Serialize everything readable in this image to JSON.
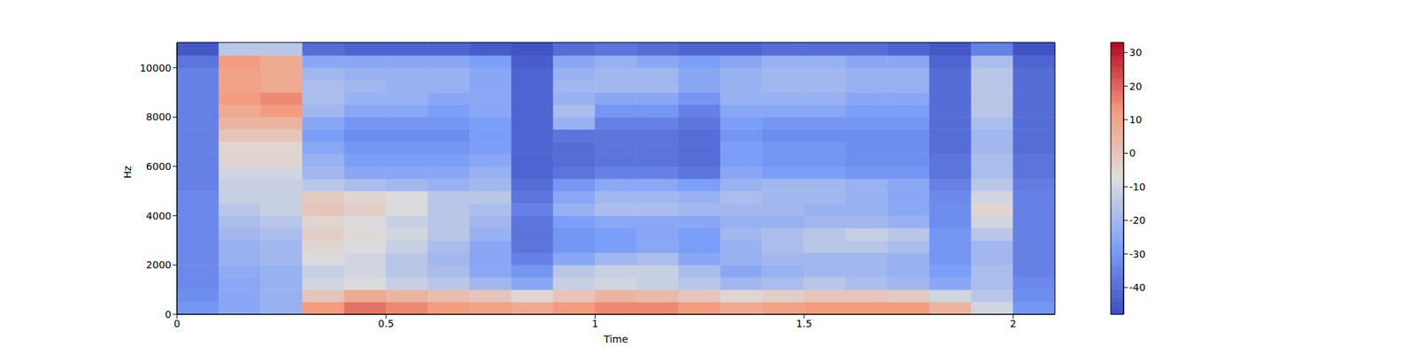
{
  "chart_data": {
    "type": "heatmap",
    "xlabel": "Time",
    "ylabel": "Hz",
    "x": [
      0,
      0.1,
      0.2,
      0.3,
      0.4,
      0.5,
      0.6,
      0.7,
      0.8,
      0.9,
      1.0,
      1.1,
      1.2,
      1.3,
      1.4,
      1.5,
      1.6,
      1.7,
      1.8,
      1.9,
      2.0,
      2.1
    ],
    "y": [
      0,
      500,
      1000,
      1500,
      2000,
      2500,
      3000,
      3500,
      4000,
      4500,
      5000,
      5500,
      6000,
      6500,
      7000,
      7500,
      8000,
      8500,
      9000,
      9500,
      10000,
      10500,
      11025
    ],
    "z": [
      [
        -30,
        -25,
        -22,
        12,
        18,
        15,
        12,
        10,
        8,
        12,
        15,
        15,
        12,
        8,
        10,
        12,
        12,
        12,
        5,
        -10,
        -30
      ],
      [
        -32,
        -25,
        -22,
        0,
        8,
        5,
        2,
        0,
        -5,
        0,
        5,
        3,
        0,
        -5,
        -3,
        0,
        0,
        -2,
        -10,
        -15,
        -32
      ],
      [
        -33,
        -25,
        -22,
        -10,
        -8,
        -12,
        -15,
        -20,
        -25,
        -12,
        -10,
        -12,
        -15,
        -20,
        -18,
        -15,
        -18,
        -20,
        -25,
        -18,
        -33
      ],
      [
        -33,
        -24,
        -22,
        -12,
        -10,
        -15,
        -18,
        -25,
        -30,
        -15,
        -12,
        -12,
        -18,
        -25,
        -22,
        -20,
        -20,
        -22,
        -28,
        -18,
        -35
      ],
      [
        -33,
        -22,
        -20,
        -8,
        -10,
        -15,
        -20,
        -25,
        -35,
        -25,
        -20,
        -18,
        -25,
        -22,
        -20,
        -20,
        -20,
        -22,
        -30,
        -20,
        -35
      ],
      [
        -33,
        -22,
        -20,
        -5,
        -8,
        -12,
        -18,
        -25,
        -38,
        -30,
        -28,
        -25,
        -28,
        -22,
        -18,
        -15,
        -15,
        -18,
        -30,
        -20,
        -35
      ],
      [
        -33,
        -20,
        -18,
        -3,
        -6,
        -10,
        -15,
        -22,
        -38,
        -30,
        -28,
        -25,
        -28,
        -20,
        -18,
        -15,
        -12,
        -15,
        -30,
        -15,
        -35
      ],
      [
        -33,
        -18,
        -15,
        -5,
        -8,
        -12,
        -15,
        -20,
        -38,
        -28,
        -25,
        -25,
        -25,
        -22,
        -22,
        -20,
        -20,
        -22,
        -32,
        -10,
        -35
      ],
      [
        -33,
        -15,
        -12,
        0,
        -3,
        -8,
        -15,
        -18,
        -35,
        -22,
        -18,
        -18,
        -20,
        -20,
        -20,
        -22,
        -22,
        -25,
        -32,
        -5,
        -35
      ],
      [
        -33,
        -12,
        -12,
        -2,
        -5,
        -8,
        -15,
        -15,
        -38,
        -25,
        -20,
        -20,
        -22,
        -18,
        -20,
        -20,
        -22,
        -25,
        -33,
        -10,
        -35
      ],
      [
        -35,
        -12,
        -12,
        -15,
        -18,
        -20,
        -22,
        -20,
        -40,
        -30,
        -25,
        -25,
        -28,
        -22,
        -20,
        -20,
        -22,
        -25,
        -35,
        -15,
        -36
      ],
      [
        -35,
        -10,
        -10,
        -20,
        -25,
        -25,
        -25,
        -22,
        -42,
        -38,
        -35,
        -35,
        -38,
        -25,
        -28,
        -28,
        -30,
        -30,
        -38,
        -18,
        -38
      ],
      [
        -35,
        -5,
        -5,
        -22,
        -28,
        -28,
        -28,
        -25,
        -42,
        -40,
        -38,
        -38,
        -40,
        -28,
        -30,
        -30,
        -32,
        -32,
        -38,
        -18,
        -38
      ],
      [
        -35,
        -5,
        -5,
        -25,
        -30,
        -30,
        -30,
        -28,
        -42,
        -40,
        -38,
        -38,
        -40,
        -28,
        -30,
        -30,
        -32,
        -32,
        -40,
        -20,
        -40
      ],
      [
        -35,
        0,
        0,
        -28,
        -32,
        -32,
        -32,
        -28,
        -42,
        -38,
        -38,
        -38,
        -40,
        -30,
        -32,
        -32,
        -32,
        -32,
        -40,
        -20,
        -40
      ],
      [
        -35,
        5,
        5,
        -25,
        -30,
        -30,
        -30,
        -28,
        -42,
        -22,
        -35,
        -35,
        -38,
        -28,
        -30,
        -30,
        -30,
        -30,
        -40,
        -18,
        -40
      ],
      [
        -35,
        8,
        12,
        -20,
        -25,
        -25,
        -28,
        -25,
        -42,
        -18,
        -30,
        -30,
        -35,
        -25,
        -25,
        -25,
        -28,
        -28,
        -40,
        -15,
        -40
      ],
      [
        -35,
        12,
        15,
        -18,
        -22,
        -22,
        -25,
        -25,
        -42,
        -22,
        -25,
        -25,
        -30,
        -22,
        -22,
        -22,
        -25,
        -25,
        -40,
        -15,
        -40
      ],
      [
        -35,
        10,
        8,
        -18,
        -20,
        -22,
        -22,
        -25,
        -42,
        -20,
        -20,
        -20,
        -25,
        -22,
        -20,
        -20,
        -22,
        -22,
        -40,
        -15,
        -40
      ],
      [
        -35,
        10,
        8,
        -20,
        -22,
        -22,
        -22,
        -25,
        -42,
        -22,
        -20,
        -20,
        -25,
        -22,
        -20,
        -20,
        -22,
        -22,
        -40,
        -15,
        -40
      ],
      [
        -38,
        12,
        8,
        -25,
        -25,
        -25,
        -25,
        -28,
        -44,
        -25,
        -22,
        -25,
        -28,
        -25,
        -22,
        -22,
        -25,
        -25,
        -42,
        -18,
        -42
      ],
      [
        -45,
        -15,
        -15,
        -40,
        -42,
        -42,
        -42,
        -44,
        -46,
        -40,
        -38,
        -40,
        -42,
        -42,
        -40,
        -40,
        -40,
        -42,
        -45,
        -35,
        -46
      ]
    ],
    "xlim": [
      0,
      2.1
    ],
    "ylim": [
      0,
      11025
    ],
    "xticks": [
      0,
      0.5,
      1,
      1.5,
      2
    ],
    "yticks": [
      0,
      2000,
      4000,
      6000,
      8000,
      10000
    ],
    "colorbar": {
      "range": [
        -48,
        33
      ],
      "ticks": [
        -40,
        -30,
        -20,
        -10,
        0,
        10,
        20,
        30
      ]
    }
  }
}
